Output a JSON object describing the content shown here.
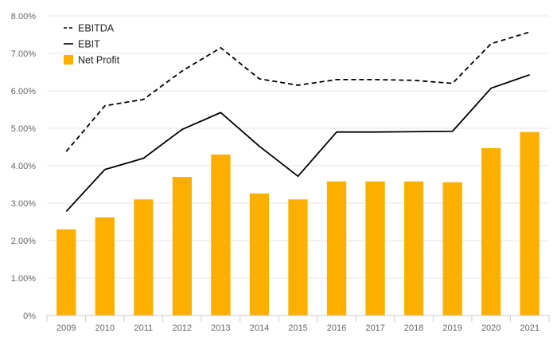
{
  "chart_data": {
    "type": "bar",
    "categories": [
      "2009",
      "2010",
      "2011",
      "2012",
      "2013",
      "2014",
      "2015",
      "2016",
      "2017",
      "2018",
      "2019",
      "2020",
      "2021"
    ],
    "ylim": [
      0,
      8
    ],
    "yticks": [
      0,
      1,
      2,
      3,
      4,
      5,
      6,
      7,
      8
    ],
    "ytick_labels": [
      "0%",
      "1.00%",
      "2.00%",
      "3.00%",
      "4.00%",
      "5.00%",
      "6.00%",
      "7.00%",
      "8.00%"
    ],
    "grid": true,
    "legend": "top-left",
    "series": [
      {
        "name": "EBITDA",
        "type": "line",
        "style": "dashed",
        "color": "#000000",
        "values": [
          4.38,
          5.6,
          5.77,
          6.53,
          7.15,
          6.32,
          6.15,
          6.3,
          6.3,
          6.28,
          6.2,
          7.26,
          7.57
        ]
      },
      {
        "name": "EBIT",
        "type": "line",
        "style": "solid",
        "color": "#000000",
        "values": [
          2.78,
          3.9,
          4.2,
          4.97,
          5.42,
          4.52,
          3.72,
          4.9,
          4.9,
          4.91,
          4.92,
          6.07,
          6.43
        ]
      },
      {
        "name": "Net Profit",
        "type": "bar",
        "color": "#FBB000",
        "values": [
          2.3,
          2.62,
          3.1,
          3.7,
          4.3,
          3.26,
          3.1,
          3.58,
          3.58,
          3.58,
          3.56,
          4.47,
          4.9
        ]
      }
    ]
  }
}
